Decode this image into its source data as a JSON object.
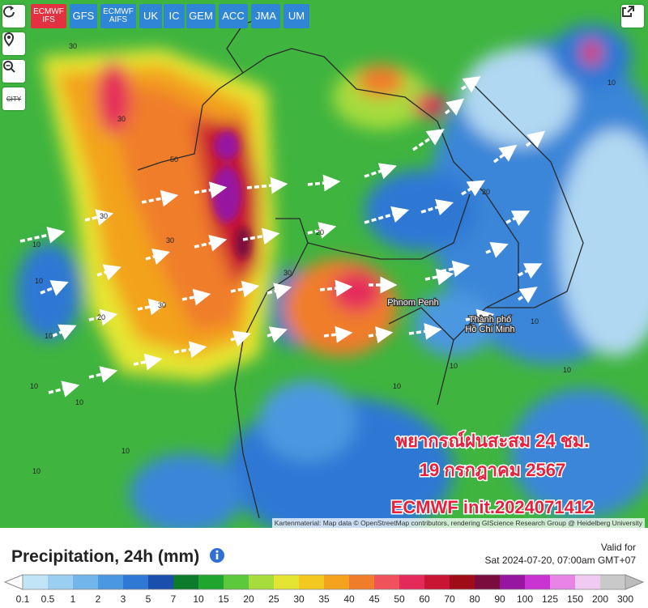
{
  "toolbar": {
    "models": [
      {
        "lines": [
          "ECMWF",
          "IFS"
        ],
        "color": "#e4313f"
      },
      {
        "lines": [
          "GFS"
        ],
        "color": "#2f86d6"
      },
      {
        "lines": [
          "ECMWF",
          "AIFS"
        ],
        "color": "#2f86d6"
      },
      {
        "lines": [
          "UK"
        ],
        "color": "#2f86d6"
      },
      {
        "lines": [
          "IC"
        ],
        "color": "#2f86d6"
      },
      {
        "lines": [
          "GEM"
        ],
        "color": "#2f86d6"
      },
      {
        "lines": [
          "ACC"
        ],
        "color": "#2f86d6"
      },
      {
        "lines": [
          "JMA"
        ],
        "color": "#2f86d6"
      },
      {
        "lines": [
          "UM"
        ],
        "color": "#2f86d6"
      }
    ]
  },
  "sidebar": {
    "city": "CITY"
  },
  "map": {
    "contour_labels": [
      "30",
      "30",
      "50",
      "30",
      "30",
      "20",
      "30",
      "10",
      "10",
      "10",
      "10",
      "10",
      "10",
      "10",
      "30",
      "20",
      "20",
      "10",
      "10",
      "10",
      "10",
      "10"
    ],
    "place_labels": [
      "Phnom Penh",
      "Thành phố",
      "Hồ Chí Minh"
    ],
    "overlay": [
      "พยากรณ์ฝนสะสม 24 ชม.",
      "19 กรกฎาคม 2567",
      "ECMWF init.2024071412"
    ],
    "attribution": "Kartenmaterial: Map data © OpenStreetMap contributors, rendering GIScience Research Group @ Heidelberg University"
  },
  "legend": {
    "title": "Precipitation, 24h (mm)",
    "valid_label": "Valid for",
    "valid_time": "Sat 2024-07-20, 07:00am GMT+07",
    "scale": [
      0.1,
      0.5,
      1,
      2,
      3,
      5,
      7,
      10,
      15,
      20,
      25,
      30,
      35,
      40,
      45,
      50,
      60,
      70,
      80,
      90,
      100,
      125,
      150,
      200,
      300
    ],
    "colors": [
      "#c2e4f7",
      "#9bcff2",
      "#72b5ea",
      "#4c98e0",
      "#2f78d4",
      "#1a4fae",
      "#0d7a2c",
      "#20a52f",
      "#5cc83b",
      "#a6dc3c",
      "#e4e533",
      "#f3c91f",
      "#f5a21f",
      "#f07d29",
      "#f0525c",
      "#e4295b",
      "#c81533",
      "#9f0b16",
      "#7a0b3d",
      "#9716a1",
      "#c833d2",
      "#e784e6",
      "#f1caf1",
      "#c9c9c9"
    ]
  }
}
